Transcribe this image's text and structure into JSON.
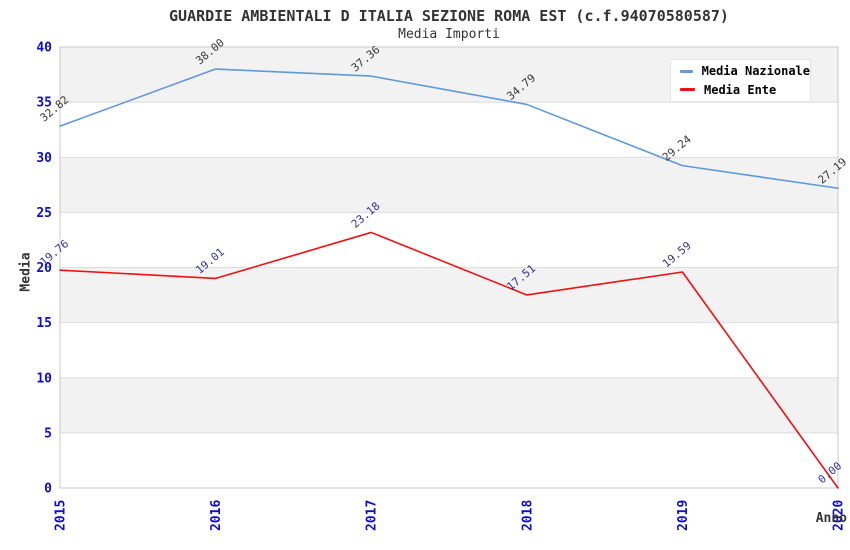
{
  "title": "GUARDIE AMBIENTALI D ITALIA SEZIONE ROMA EST (c.f.94070580587)",
  "subtitle": "Media Importi",
  "chart_data": {
    "type": "line",
    "x": [
      "2015",
      "2016",
      "2017",
      "2018",
      "2019",
      "2020"
    ],
    "series": [
      {
        "name": "Media Nazionale",
        "color": "#5E9AD9",
        "label_color": "#383838",
        "values": [
          32.82,
          38.0,
          37.36,
          34.79,
          29.24,
          27.19
        ]
      },
      {
        "name": "Media Ente",
        "color": "#EE1111",
        "label_color": "#333399",
        "values": [
          19.76,
          19.01,
          23.18,
          17.51,
          19.59,
          0.0
        ]
      }
    ],
    "xlabel": "Anno",
    "ylabel": "Media",
    "ylim": [
      0,
      40
    ],
    "ytick_step": 5,
    "yticks": [
      0,
      5,
      10,
      15,
      20,
      25,
      30,
      35,
      40
    ],
    "grid": true,
    "legend_position": "top-right",
    "value_label_decimals": 2
  },
  "colors": {
    "tick_label": "#0D0DCB",
    "band_fill": "#F2F2F2",
    "grid_line": "#DCDCDC",
    "plot_border": "#C8C8C8",
    "title_text": "#333333"
  }
}
